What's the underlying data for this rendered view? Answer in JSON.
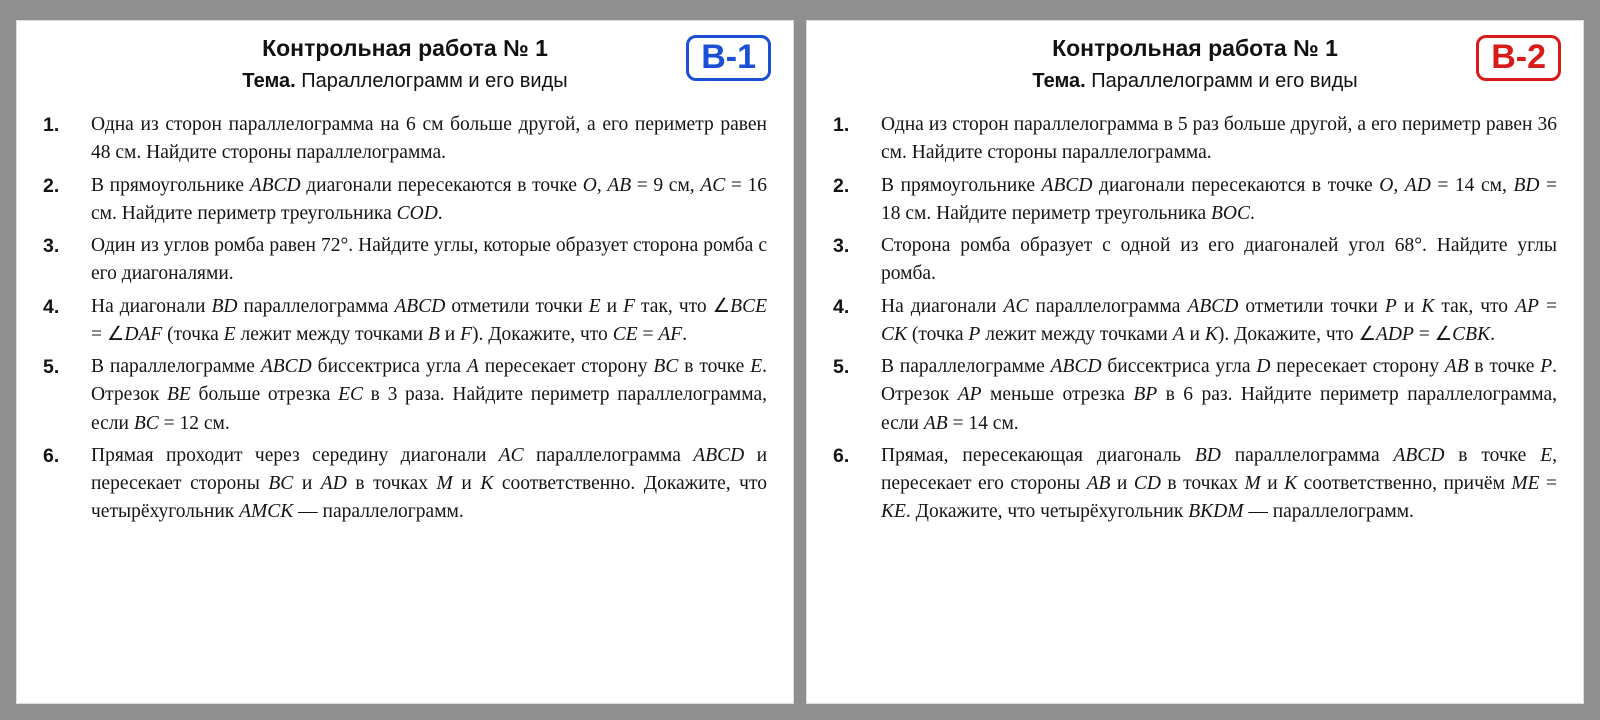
{
  "background_color": "#8f8f8f",
  "card_background": "#ffffff",
  "text_color": "#141414",
  "fontsize_title": 23,
  "fontsize_subtitle": 20,
  "fontsize_body": 19.5,
  "variants": [
    {
      "badge": "В-1",
      "badge_color": "#1a4fd6",
      "title": "Контрольная работа № 1",
      "subtitle_lead": "Тема.",
      "subtitle_rest": " Параллелограмм и его виды",
      "tasks": [
        "Одна из сторон параллелограмма на 6 см больше другой, а его периметр равен 48 см. Найдите стороны параллелограмма.",
        "В прямоугольнике <span class=\"mi\">ABCD</span> диагонали пересекаются в точке <span class=\"mi\">O</span>, <span class=\"mi\">AB</span> = 9 см, <span class=\"mi\">AC</span> = 16 см. Найдите периметр треугольника <span class=\"mi\">COD</span>.",
        "Один из углов ромба равен 72°. Найдите углы, которые образует сторона ромба с его диагоналями.",
        "На диагонали <span class=\"mi\">BD</span> параллелограмма <span class=\"mi\">ABCD</span> отметили точки <span class=\"mi\">E</span> и <span class=\"mi\">F</span> так, что ∠<span class=\"mi\">BCE</span> = ∠<span class=\"mi\">DAF</span> (точка <span class=\"mi\">E</span> лежит между точками <span class=\"mi\">B</span> и <span class=\"mi\">F</span>). Докажите, что <span class=\"mi\">CE</span> = <span class=\"mi\">AF</span>.",
        "В параллелограмме <span class=\"mi\">ABCD</span> биссектриса угла <span class=\"mi\">A</span> пересекает сторону <span class=\"mi\">BC</span> в точке <span class=\"mi\">E</span>. Отрезок <span class=\"mi\">BE</span> больше отрезка <span class=\"mi\">EC</span> в 3 раза. Найдите периметр параллелограмма, если <span class=\"mi\">BC</span> = 12 см.",
        "Прямая проходит через середину диагонали <span class=\"mi\">AC</span> параллелограмма <span class=\"mi\">ABCD</span> и пересекает стороны <span class=\"mi\">BC</span> и <span class=\"mi\">AD</span> в точках <span class=\"mi\">M</span> и <span class=\"mi\">K</span> соответственно. Докажите, что четырёхугольник <span class=\"mi\">AMCK</span> — параллелограмм."
      ]
    },
    {
      "badge": "В-2",
      "badge_color": "#d91a1a",
      "title": "Контрольная работа № 1",
      "subtitle_lead": "Тема.",
      "subtitle_rest": " Параллелограмм и его виды",
      "tasks": [
        "Одна из сторон параллелограмма в 5 раз больше другой, а его периметр равен 36 см. Найдите стороны параллелограмма.",
        "В прямоугольнике <span class=\"mi\">ABCD</span> диагонали пересекаются в точке <span class=\"mi\">O</span>, <span class=\"mi\">AD</span> = 14 см, <span class=\"mi\">BD</span> = 18 см. Найдите периметр треугольника <span class=\"mi\">BOC</span>.",
        "Сторона ромба образует с одной из его диагоналей угол 68°. Найдите углы ромба.",
        "На диагонали <span class=\"mi\">AC</span> параллелограмма <span class=\"mi\">ABCD</span> отметили точки <span class=\"mi\">P</span> и <span class=\"mi\">K</span> так, что <span class=\"mi\">AP</span> = <span class=\"mi\">CK</span> (точка <span class=\"mi\">P</span> лежит между точками <span class=\"mi\">A</span> и <span class=\"mi\">K</span>). Докажите, что ∠<span class=\"mi\">ADP</span> = ∠<span class=\"mi\">CBK</span>.",
        "В параллелограмме <span class=\"mi\">ABCD</span> биссектриса угла <span class=\"mi\">D</span> пересекает сторону <span class=\"mi\">AB</span> в точке <span class=\"mi\">P</span>. Отрезок <span class=\"mi\">AP</span> меньше отрезка <span class=\"mi\">BP</span> в 6 раз. Найдите периметр параллелограмма, если <span class=\"mi\">AB</span> = 14 см.",
        "Прямая, пересекающая диагональ <span class=\"mi\">BD</span> параллелограмма <span class=\"mi\">ABCD</span> в точке <span class=\"mi\">E</span>, пересекает его стороны <span class=\"mi\">AB</span> и <span class=\"mi\">CD</span> в точках <span class=\"mi\">M</span> и <span class=\"mi\">K</span> соответственно, причём <span class=\"mi\">ME</span> = <span class=\"mi\">KE</span>. Докажите, что четырёхугольник <span class=\"mi\">BKDM</span> — параллелограмм."
      ]
    }
  ]
}
